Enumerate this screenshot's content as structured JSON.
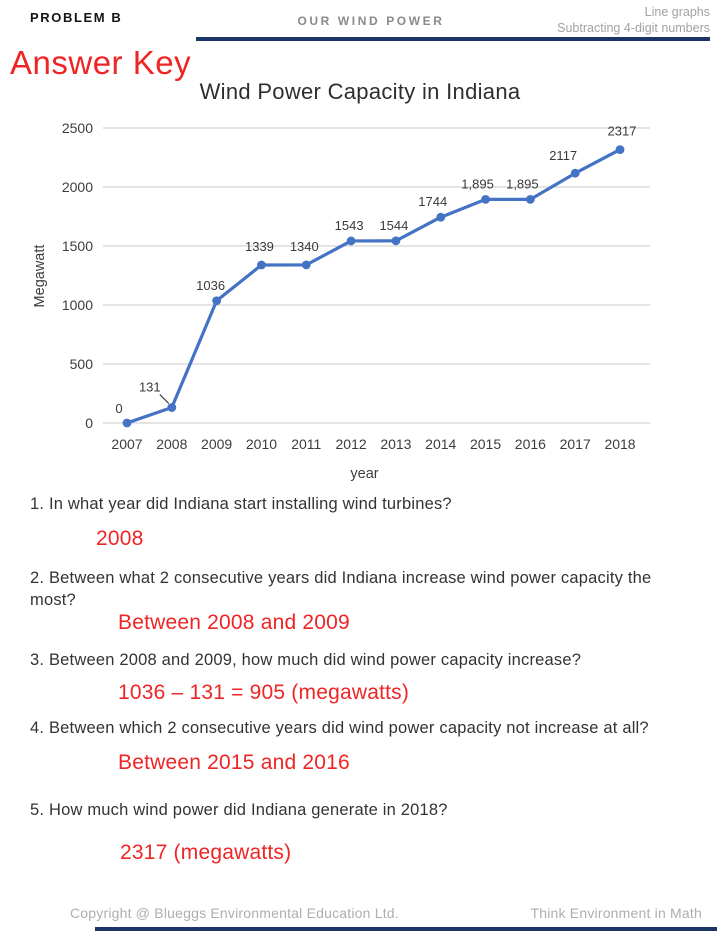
{
  "header": {
    "problem_label": "PROBLEM B",
    "worksheet_title": "OUR WIND POWER",
    "topic_line1": "Line graphs",
    "topic_line2": "Subtracting 4-digit numbers"
  },
  "answer_key_label": "Answer Key",
  "chart_data": {
    "type": "line",
    "title": "Wind Power Capacity in Indiana",
    "xlabel": "year",
    "ylabel": "Megawatt",
    "categories": [
      "2007",
      "2008",
      "2009",
      "2010",
      "2011",
      "2012",
      "2013",
      "2014",
      "2015",
      "2016",
      "2017",
      "2018"
    ],
    "values": [
      0,
      131,
      1036,
      1339,
      1340,
      1543,
      1544,
      1744,
      1895,
      1895,
      2117,
      2317
    ],
    "point_labels": [
      "0",
      "131",
      "1036",
      "1339",
      "1340",
      "1543",
      "1544",
      "1744",
      "1,895",
      "1,895",
      "2117",
      "2317"
    ],
    "ylim": [
      0,
      2500
    ],
    "yticks": [
      0,
      500,
      1000,
      1500,
      2000,
      2500
    ],
    "grid": true,
    "legend": false,
    "line_color": "#4472c4",
    "callout_point_index": 1
  },
  "questions": [
    {
      "number": "1.",
      "text": "In what year did Indiana start installing wind turbines?",
      "answer": "2008"
    },
    {
      "number": "2.",
      "text": "Between what 2 consecutive years did Indiana increase wind power capacity the most?",
      "answer": "Between 2008 and 2009"
    },
    {
      "number": "3.",
      "text": "Between 2008 and 2009, how much did wind power capacity increase?",
      "answer": "1036 – 131 = 905 (megawatts)"
    },
    {
      "number": "4.",
      "text": "Between which 2 consecutive years did wind power capacity not increase at all?",
      "answer": "Between 2015 and 2016"
    },
    {
      "number": "5.",
      "text": "How much wind power did Indiana generate in 2018?",
      "answer": "2317 (megawatts)"
    }
  ],
  "footer": {
    "copyright": "Copyright @ Blueggs Environmental Education Ltd.",
    "tagline": "Think Environment in Math"
  },
  "colors": {
    "answer_red": "#ee2524",
    "navy": "#1b3666",
    "chart_blue": "#4472c4",
    "gridline": "#c9c9c9"
  }
}
